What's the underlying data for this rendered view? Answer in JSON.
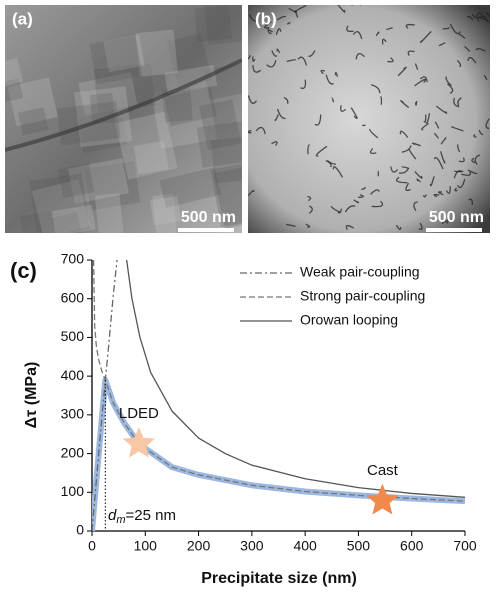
{
  "panels": [
    {
      "label": "(a)",
      "scale_bar": "500 nm"
    },
    {
      "label": "(b)",
      "scale_bar": "500 nm"
    }
  ],
  "chart_data": {
    "type": "line",
    "panel_label": "(c)",
    "x_label": "Precipitate size (nm)",
    "y_label": "Δτ (MPa)",
    "xlim": [
      0,
      700
    ],
    "ylim": [
      0,
      700
    ],
    "xticks": [
      0,
      100,
      200,
      300,
      400,
      500,
      600,
      700
    ],
    "yticks": [
      0,
      100,
      200,
      300,
      400,
      500,
      600,
      700
    ],
    "legend": "upper right",
    "series": [
      {
        "name": "Weak pair-coupling",
        "color": "#666666",
        "dash": "dash-dot",
        "x": [
          0,
          10,
          20,
          25,
          30,
          40,
          47
        ],
        "values": [
          0,
          160,
          315,
          390,
          460,
          610,
          700
        ]
      },
      {
        "name": "Strong pair-coupling",
        "color": "#777777",
        "dash": "dashed",
        "x": [
          3,
          5,
          8,
          12,
          18,
          25,
          40,
          60,
          88,
          150,
          200,
          300,
          400,
          500,
          600,
          700
        ],
        "values": [
          700,
          530,
          480,
          445,
          415,
          390,
          330,
          280,
          225,
          165,
          145,
          118,
          102,
          92,
          84,
          77
        ]
      },
      {
        "name": "Orowan looping",
        "color": "#555555",
        "dash": "solid",
        "x": [
          65,
          75,
          90,
          110,
          150,
          200,
          250,
          300,
          400,
          500,
          600,
          700
        ],
        "values": [
          700,
          600,
          500,
          410,
          310,
          240,
          200,
          170,
          135,
          112,
          97,
          87
        ]
      },
      {
        "color": "#9db8e0",
        "dash": "thick",
        "x": [
          0,
          10,
          20,
          25,
          40,
          60,
          88,
          150,
          200,
          300,
          400,
          500,
          600,
          700
        ],
        "values": [
          0,
          160,
          315,
          390,
          330,
          280,
          225,
          165,
          145,
          118,
          102,
          92,
          84,
          77
        ]
      }
    ],
    "points": [
      {
        "label": "LDED",
        "x": 88,
        "y": 225,
        "color": "#f7c7a6"
      },
      {
        "label": "Cast",
        "x": 545,
        "y": 78,
        "color": "#f0894a"
      }
    ],
    "vline": {
      "x": 25,
      "y": 390
    },
    "annotation": {
      "symbol": "d",
      "subscript": "m",
      "text": "=25 nm"
    }
  }
}
